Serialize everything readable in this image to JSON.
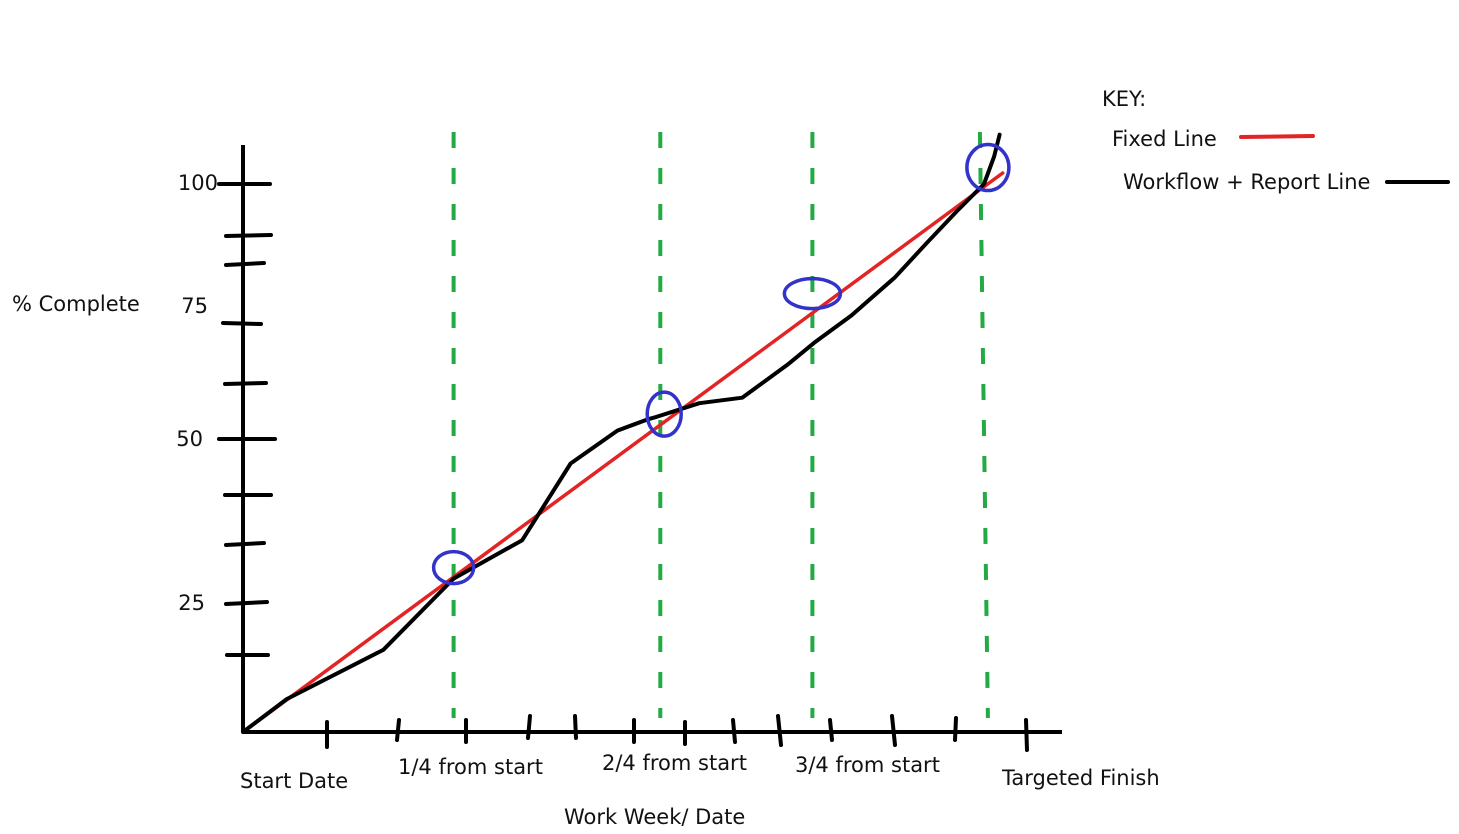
{
  "chart_data": {
    "type": "line",
    "ylabel": "% Complete",
    "xlabel": "Work Week/ Date",
    "yticks": [
      "100",
      "75",
      "50",
      "25"
    ],
    "xticks": [
      "Start Date",
      "1/4 from start",
      "2/4 from start",
      "3/4 from start",
      "Targeted Finish"
    ],
    "xlim": [
      0,
      1
    ],
    "ylim": [
      0,
      100
    ],
    "legend": {
      "title": "KEY:",
      "placement": "top-right",
      "entries": [
        {
          "label": "Fixed Line",
          "color": "#e32424"
        },
        {
          "label": "Workflow + Report Line",
          "color": "#000000"
        }
      ]
    },
    "series": [
      {
        "name": "Fixed Line",
        "color": "#e32424",
        "x": [
          0,
          0.974
        ],
        "y": [
          0,
          102
        ]
      },
      {
        "name": "Workflow + Report Line",
        "color": "#000000",
        "x": [
          0,
          0.056,
          0.18,
          0.27,
          0.358,
          0.42,
          0.48,
          0.518,
          0.53,
          0.585,
          0.64,
          0.698,
          0.732,
          0.78,
          0.836,
          0.875,
          0.915,
          0.95,
          0.963,
          0.97
        ],
        "y": [
          0,
          6,
          15,
          28,
          35,
          49,
          55,
          57,
          57.5,
          60,
          61,
          67,
          71,
          76,
          83,
          89,
          95,
          100,
          105,
          109
        ]
      }
    ],
    "reference_lines": {
      "color": "#22aa44",
      "style": "dashed",
      "x": [
        0.27,
        0.535,
        0.73,
        0.955
      ]
    },
    "highlight_circles": {
      "color": "#3333cc",
      "points": [
        {
          "x": 0.27,
          "y": 30
        },
        {
          "x": 0.54,
          "y": 58
        },
        {
          "x": 0.73,
          "y": 80
        },
        {
          "x": 0.955,
          "y": 103
        }
      ]
    }
  }
}
